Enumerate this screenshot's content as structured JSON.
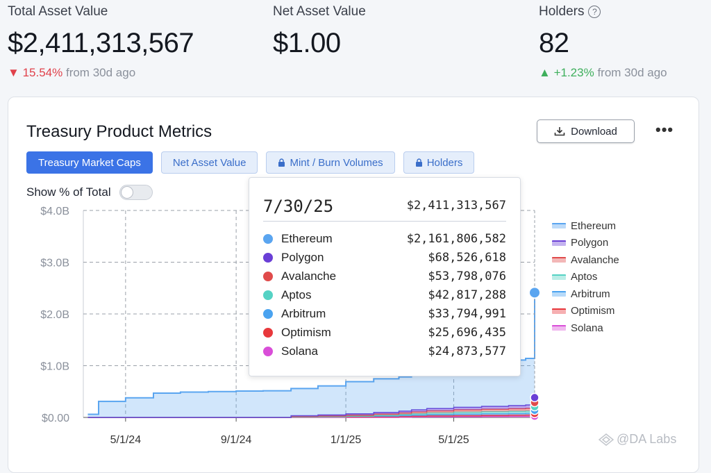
{
  "stats": {
    "total_asset_value": {
      "label": "Total Asset Value",
      "value": "$2,411,313,567",
      "change": "15.54%",
      "change_suffix": "from 30d ago",
      "direction": "down"
    },
    "net_asset_value": {
      "label": "Net Asset Value",
      "value": "$1.00"
    },
    "holders": {
      "label": "Holders",
      "value": "82",
      "change": "+1.23%",
      "change_suffix": "from 30d ago",
      "direction": "up",
      "icon": "help-circle-icon"
    }
  },
  "card": {
    "title": "Treasury Product Metrics",
    "download_label": "Download",
    "more_icon": "more-horizontal-icon",
    "tabs": [
      {
        "label": "Treasury Market Caps",
        "active": true,
        "locked": false
      },
      {
        "label": "Net Asset Value",
        "active": false,
        "locked": false
      },
      {
        "label": "Mint / Burn Volumes",
        "active": false,
        "locked": true
      },
      {
        "label": "Holders",
        "active": false,
        "locked": true
      }
    ],
    "toggle_label": "Show % of Total",
    "toggle_on": false
  },
  "chart_data": {
    "type": "area",
    "stacked": true,
    "y_ticks": [
      "$0.00",
      "$1.0B",
      "$2.0B",
      "$3.0B",
      "$4.0B"
    ],
    "ylim": [
      0,
      4000000000
    ],
    "x_ticks": [
      "5/1/24",
      "9/1/24",
      "1/1/25",
      "5/1/25"
    ],
    "grid": true,
    "legend_position": "right",
    "x": [
      "2024-03-20",
      "2024-04-01",
      "2024-05-01",
      "2024-06-01",
      "2024-07-01",
      "2024-08-01",
      "2024-09-01",
      "2024-10-01",
      "2024-11-01",
      "2024-12-01",
      "2025-01-01",
      "2025-02-01",
      "2025-03-01",
      "2025-03-15",
      "2025-04-01",
      "2025-05-01",
      "2025-06-01",
      "2025-07-01",
      "2025-07-20",
      "2025-07-30"
    ],
    "series": [
      {
        "name": "Ethereum",
        "color": "#5aa5f0",
        "values": [
          60000000,
          310000000,
          380000000,
          470000000,
          490000000,
          500000000,
          510000000,
          515000000,
          525000000,
          560000000,
          620000000,
          650000000,
          660000000,
          680000000,
          800000000,
          850000000,
          870000000,
          880000000,
          900000000,
          2161806582
        ]
      },
      {
        "name": "Polygon",
        "color": "#6a3fd6",
        "values": [
          0,
          0,
          0,
          0,
          0,
          0,
          0,
          0,
          15000000,
          20000000,
          25000000,
          30000000,
          35000000,
          40000000,
          45000000,
          50000000,
          55000000,
          60000000,
          65000000,
          68526618
        ]
      },
      {
        "name": "Avalanche",
        "color": "#e04b4b",
        "values": [
          0,
          0,
          0,
          0,
          0,
          0,
          0,
          0,
          10000000,
          15000000,
          20000000,
          25000000,
          30000000,
          35000000,
          40000000,
          45000000,
          48000000,
          50000000,
          52000000,
          53798076
        ]
      },
      {
        "name": "Aptos",
        "color": "#55d2c4",
        "values": [
          0,
          0,
          0,
          0,
          0,
          0,
          0,
          0,
          0,
          0,
          5000000,
          15000000,
          20000000,
          25000000,
          30000000,
          35000000,
          38000000,
          40000000,
          42000000,
          42817288
        ]
      },
      {
        "name": "Arbitrum",
        "color": "#4aa3f0",
        "values": [
          0,
          0,
          0,
          0,
          0,
          0,
          0,
          0,
          5000000,
          8000000,
          12000000,
          15000000,
          18000000,
          20000000,
          24000000,
          28000000,
          30000000,
          32000000,
          33000000,
          33794991
        ]
      },
      {
        "name": "Optimism",
        "color": "#e8383c",
        "values": [
          0,
          0,
          0,
          0,
          0,
          0,
          0,
          0,
          3000000,
          6000000,
          9000000,
          12000000,
          15000000,
          17000000,
          19000000,
          21000000,
          23000000,
          24500000,
          25000000,
          25696435
        ]
      },
      {
        "name": "Solana",
        "color": "#d94ed8",
        "values": [
          0,
          0,
          0,
          0,
          0,
          0,
          0,
          0,
          0,
          0,
          0,
          0,
          5000000,
          10000000,
          14000000,
          18000000,
          21000000,
          23000000,
          24000000,
          24873577
        ]
      }
    ]
  },
  "tooltip": {
    "date": "7/30/25",
    "total": "$2,411,313,567",
    "rows": [
      {
        "name": "Ethereum",
        "value": "$2,161,806,582",
        "color": "#5aa5f0"
      },
      {
        "name": "Polygon",
        "value": "$68,526,618",
        "color": "#6a3fd6"
      },
      {
        "name": "Avalanche",
        "value": "$53,798,076",
        "color": "#e04b4b"
      },
      {
        "name": "Aptos",
        "value": "$42,817,288",
        "color": "#55d2c4"
      },
      {
        "name": "Arbitrum",
        "value": "$33,794,991",
        "color": "#4aa3f0"
      },
      {
        "name": "Optimism",
        "value": "$25,696,435",
        "color": "#e8383c"
      },
      {
        "name": "Solana",
        "value": "$24,873,577",
        "color": "#d94ed8"
      }
    ]
  },
  "watermark": "@DA Labs"
}
